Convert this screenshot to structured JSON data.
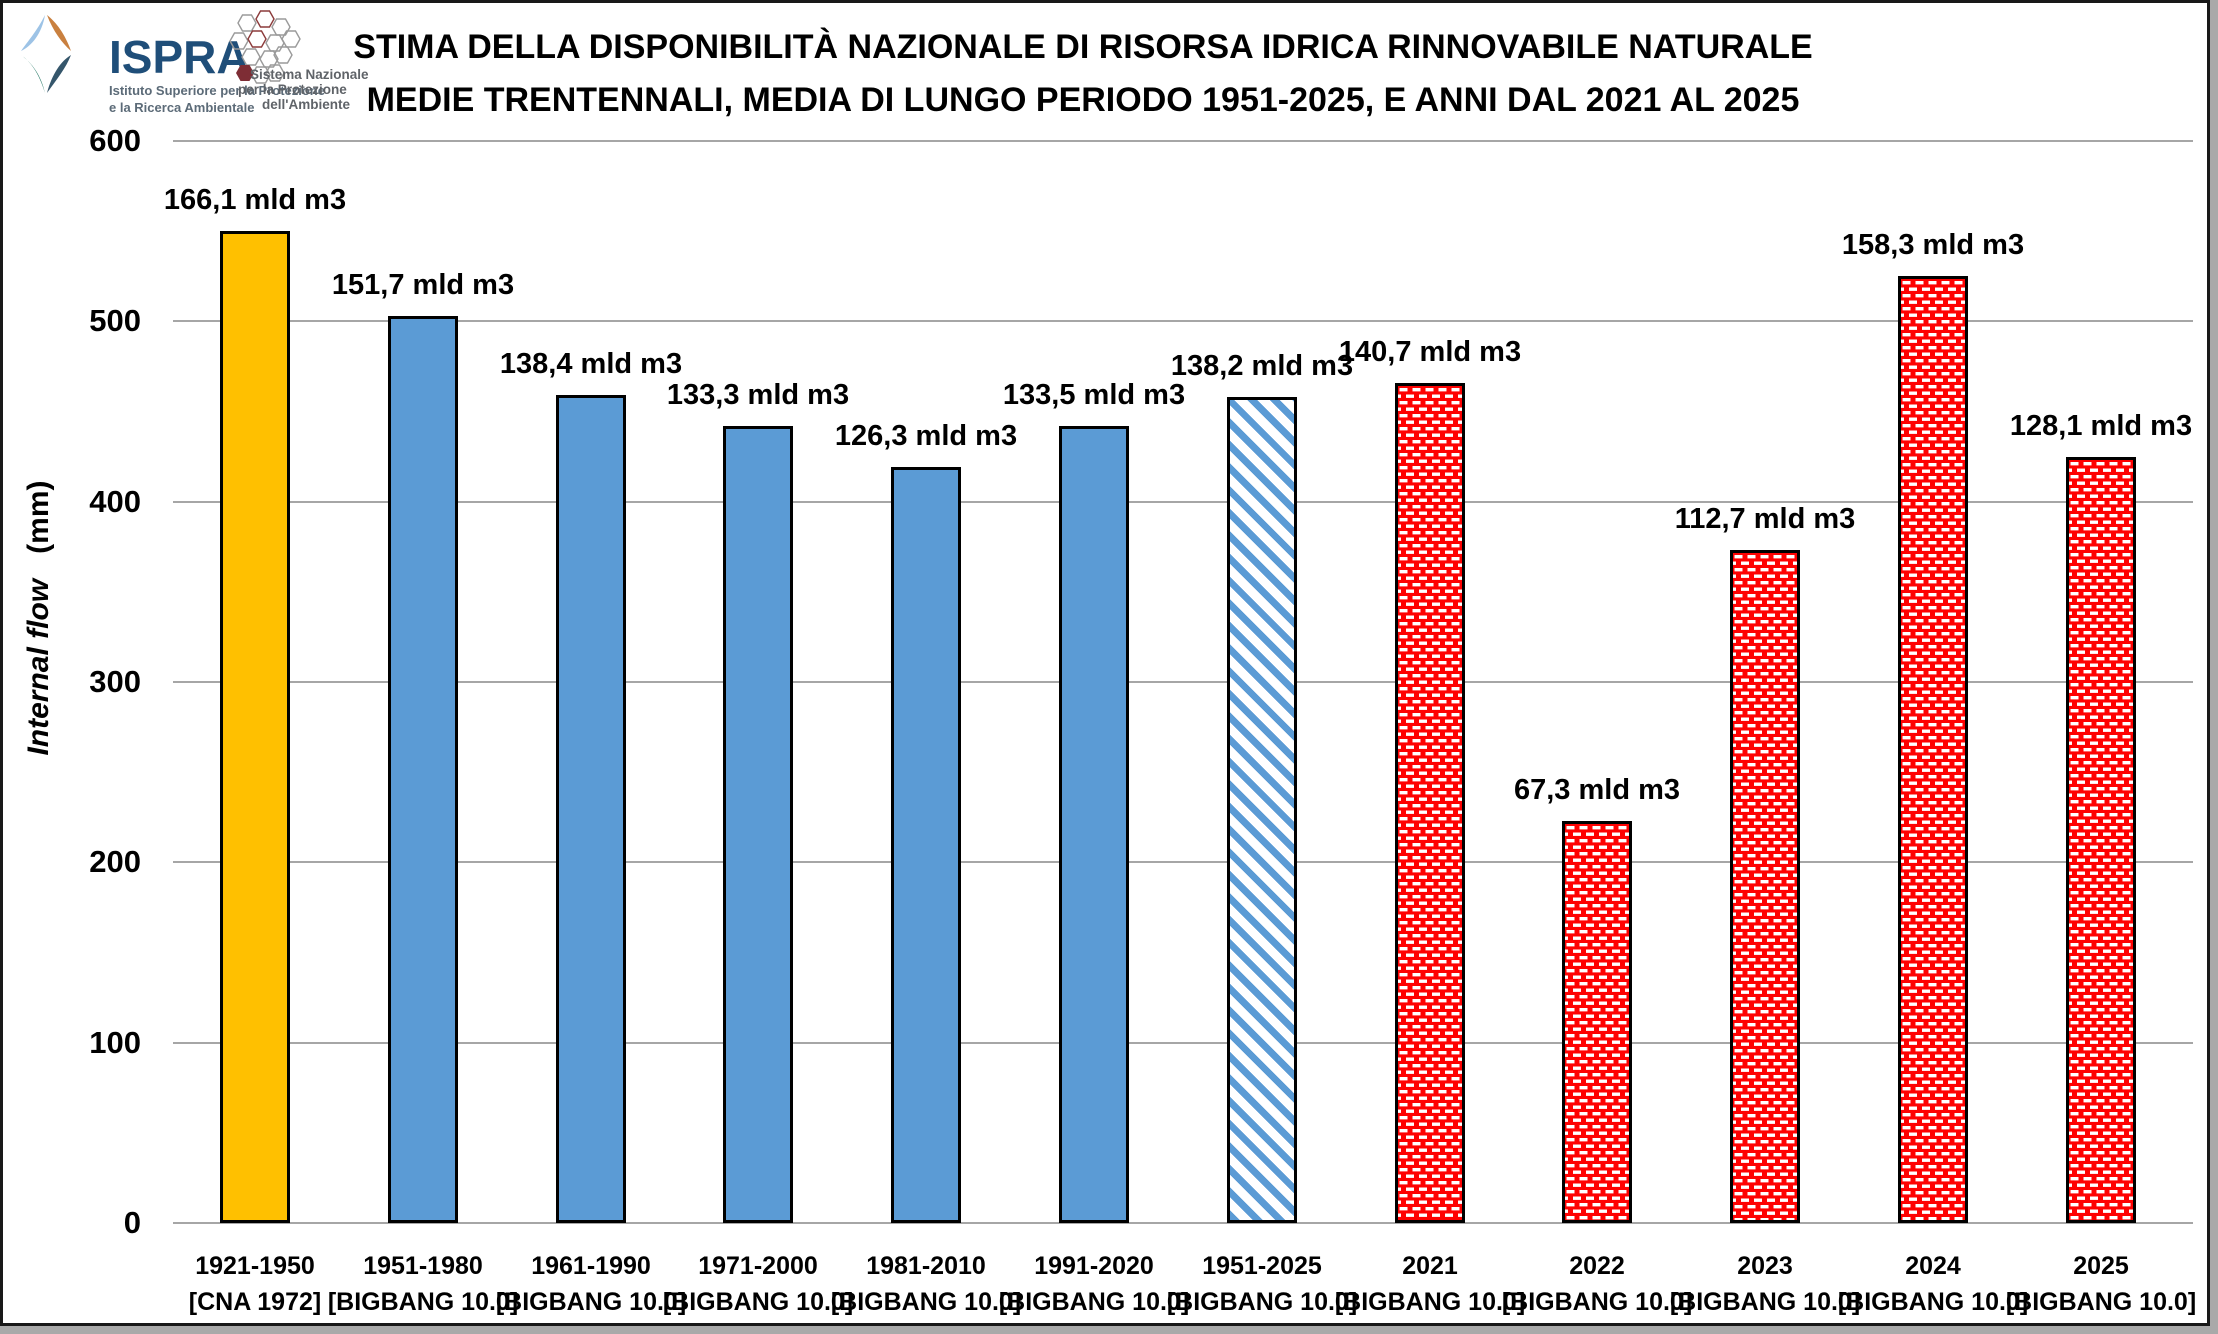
{
  "header": {
    "title_line1": "STIMA DELLA DISPONIBILITÀ NAZIONALE DI RISORSA IDRICA RINNOVABILE NATURALE",
    "title_line2": "MEDIE TRENTENNALI, MEDIA DI LUNGO PERIODO 1951-2025, E ANNI DAL 2021 AL 2025",
    "ispra": {
      "wordmark": "ISPRA",
      "subtitle_line1": "Istituto Superiore per la Protezione",
      "subtitle_line2": "e la Ricerca Ambientale"
    },
    "snpa": {
      "line1": "Sistema Nazionale",
      "line2": "per la Protezione",
      "line3": "dell'Ambiente"
    }
  },
  "chart_data": {
    "type": "bar",
    "title": "STIMA DELLA DISPONIBILITÀ NAZIONALE DI RISORSA IDRICA RINNOVABILE NATURALE — MEDIE TRENTENNALI, MEDIA DI LUNGO PERIODO 1951-2025, E ANNI DAL 2021 AL 2025",
    "ylabel": "Internal flow (mm)",
    "ylabel_italic_part": "Internal flow",
    "ylabel_unit_part": "(mm)",
    "ylim": [
      0,
      600
    ],
    "yticks": [
      0,
      100,
      200,
      300,
      400,
      500,
      600
    ],
    "grid": true,
    "legend": "none",
    "value_unit": "mld m3",
    "bars": [
      {
        "period": "1921-1950",
        "source": "[CNA 1972]",
        "value_label": "166,1 mld m3",
        "value_mld_m3": 166.1,
        "height_mm": 550,
        "style": "orange-solid"
      },
      {
        "period": "1951-1980",
        "source": "[BIGBANG 10.0]",
        "value_label": "151,7 mld m3",
        "value_mld_m3": 151.7,
        "height_mm": 503,
        "style": "blue-solid"
      },
      {
        "period": "1961-1990",
        "source": "[BIGBANG 10.0]",
        "value_label": "138,4 mld m3",
        "value_mld_m3": 138.4,
        "height_mm": 459,
        "style": "blue-solid"
      },
      {
        "period": "1971-2000",
        "source": "[BIGBANG 10.0]",
        "value_label": "133,3 mld m3",
        "value_mld_m3": 133.3,
        "height_mm": 442,
        "style": "blue-solid"
      },
      {
        "period": "1981-2010",
        "source": "[BIGBANG 10.0]",
        "value_label": "126,3 mld m3",
        "value_mld_m3": 126.3,
        "height_mm": 419,
        "style": "blue-solid"
      },
      {
        "period": "1991-2020",
        "source": "[BIGBANG 10.0]",
        "value_label": "133,5 mld m3",
        "value_mld_m3": 133.5,
        "height_mm": 442,
        "style": "blue-solid"
      },
      {
        "period": "1951-2025",
        "source": "[BIGBANG 10.0]",
        "value_label": "138,2 mld m3",
        "value_mld_m3": 138.2,
        "height_mm": 458,
        "style": "blue-hatch"
      },
      {
        "period": "2021",
        "source": "[BIGBANG 10.0]",
        "value_label": "140,7 mld m3",
        "value_mld_m3": 140.7,
        "height_mm": 466,
        "style": "red-dots"
      },
      {
        "period": "2022",
        "source": "[BIGBANG 10.0]",
        "value_label": "67,3 mld m3",
        "value_mld_m3": 67.3,
        "height_mm": 223,
        "style": "red-dots"
      },
      {
        "period": "2023",
        "source": "[BIGBANG 10.0]",
        "value_label": "112,7 mld m3",
        "value_mld_m3": 112.7,
        "height_mm": 373,
        "style": "red-dots"
      },
      {
        "period": "2024",
        "source": "[BIGBANG 10.0]",
        "value_label": "158,3 mld m3",
        "value_mld_m3": 158.3,
        "height_mm": 525,
        "style": "red-dots"
      },
      {
        "period": "2025",
        "source": "[BIGBANG 10.0]",
        "value_label": "128,1 mld m3",
        "value_mld_m3": 128.1,
        "height_mm": 425,
        "style": "red-dots"
      }
    ],
    "colors": {
      "orange": "#FFC000",
      "blue": "#5B9BD5",
      "red": "#FE0202",
      "gridline": "#A6A6A6",
      "text": "#000000",
      "ispra_blue": "#1F4E79",
      "logo_gray": "#5C6B78"
    }
  }
}
